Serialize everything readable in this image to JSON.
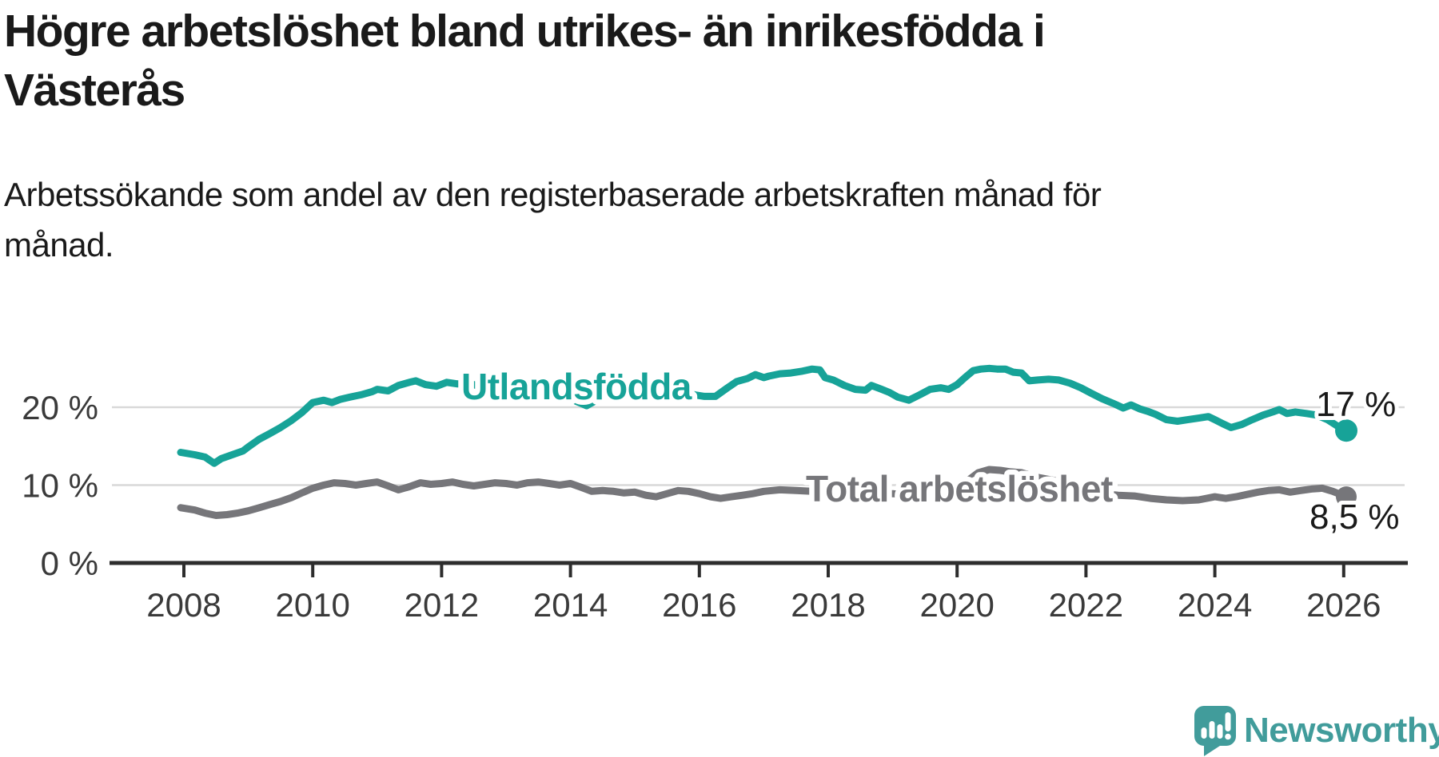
{
  "header": {
    "title_line1": "Högre arbetslöshet bland utrikes- än inrikesfödda i",
    "title_line2": "Västerås",
    "subtitle_line1": "Arbetssökande som andel av den registerbaserade arbetskraften månad för",
    "subtitle_line2": "månad."
  },
  "footer": {
    "brand": "Newsworthy"
  },
  "colors": {
    "teal_line": "#17a398",
    "gray_line": "#76767a",
    "axis_line": "#2d2d2d",
    "axis_text": "#3a3a3a",
    "gridline": "#d9d9d9",
    "value_text": "#1a1a1a",
    "brand_teal": "#419c9b",
    "background": "#ffffff"
  },
  "chart_data": {
    "type": "line",
    "title": "Högre arbetslöshet bland utrikes- än inrikesfödda i Västerås",
    "subtitle": "Arbetssökande som andel av den registerbaserade arbetskraften månad för månad.",
    "xlabel": "",
    "ylabel": "",
    "x_unit": "decimal_year",
    "x_range": [
      2007.95,
      2026.1
    ],
    "ylim": [
      0,
      26
    ],
    "grid": "horizontal",
    "legend_position": "inline",
    "y_ticks": [
      {
        "value": 0,
        "label": "0 %"
      },
      {
        "value": 10,
        "label": "10 %"
      },
      {
        "value": 20,
        "label": "20 %"
      }
    ],
    "x_ticks": [
      {
        "value": 2008,
        "label": "2008"
      },
      {
        "value": 2010,
        "label": "2010"
      },
      {
        "value": 2012,
        "label": "2012"
      },
      {
        "value": 2014,
        "label": "2014"
      },
      {
        "value": 2016,
        "label": "2016"
      },
      {
        "value": 2018,
        "label": "2018"
      },
      {
        "value": 2020,
        "label": "2020"
      },
      {
        "value": 2022,
        "label": "2022"
      },
      {
        "value": 2024,
        "label": "2024"
      },
      {
        "value": 2026,
        "label": "2026"
      }
    ],
    "series": [
      {
        "name": "Utlandsfödda",
        "color": "#17a398",
        "end_label": "17 %",
        "end_value": 17,
        "points": [
          [
            2007.95,
            14.2
          ],
          [
            2008.17,
            13.9
          ],
          [
            2008.33,
            13.6
          ],
          [
            2008.47,
            12.8
          ],
          [
            2008.58,
            13.4
          ],
          [
            2008.75,
            13.9
          ],
          [
            2008.92,
            14.4
          ],
          [
            2009.0,
            14.9
          ],
          [
            2009.17,
            15.9
          ],
          [
            2009.33,
            16.6
          ],
          [
            2009.5,
            17.4
          ],
          [
            2009.67,
            18.3
          ],
          [
            2009.83,
            19.3
          ],
          [
            2010.0,
            20.6
          ],
          [
            2010.17,
            20.9
          ],
          [
            2010.3,
            20.6
          ],
          [
            2010.42,
            21.0
          ],
          [
            2010.58,
            21.3
          ],
          [
            2010.75,
            21.6
          ],
          [
            2010.92,
            22.0
          ],
          [
            2011.0,
            22.3
          ],
          [
            2011.17,
            22.1
          ],
          [
            2011.33,
            22.8
          ],
          [
            2011.5,
            23.2
          ],
          [
            2011.6,
            23.4
          ],
          [
            2011.75,
            22.9
          ],
          [
            2011.92,
            22.7
          ],
          [
            2012.08,
            23.2
          ],
          [
            2012.25,
            23.0
          ],
          [
            2012.42,
            23.1
          ],
          [
            2012.58,
            22.7
          ],
          [
            2012.75,
            22.6
          ],
          [
            2012.92,
            22.8
          ],
          [
            2013.08,
            22.6
          ],
          [
            2013.25,
            22.4
          ],
          [
            2013.42,
            22.7
          ],
          [
            2013.58,
            22.5
          ],
          [
            2013.75,
            22.2
          ],
          [
            2013.92,
            21.6
          ],
          [
            2014.08,
            20.8
          ],
          [
            2014.25,
            20.2
          ],
          [
            2014.42,
            21.0
          ],
          [
            2014.58,
            21.4
          ],
          [
            2014.75,
            21.7
          ],
          [
            2014.92,
            21.9
          ],
          [
            2015.08,
            22.0
          ],
          [
            2015.25,
            22.3
          ],
          [
            2015.42,
            22.4
          ],
          [
            2015.58,
            22.4
          ],
          [
            2015.75,
            22.3
          ],
          [
            2015.92,
            21.6
          ],
          [
            2016.08,
            21.4
          ],
          [
            2016.25,
            21.4
          ],
          [
            2016.42,
            22.4
          ],
          [
            2016.58,
            23.3
          ],
          [
            2016.75,
            23.7
          ],
          [
            2016.87,
            24.2
          ],
          [
            2017.0,
            23.8
          ],
          [
            2017.08,
            24.0
          ],
          [
            2017.25,
            24.3
          ],
          [
            2017.42,
            24.4
          ],
          [
            2017.58,
            24.6
          ],
          [
            2017.75,
            24.9
          ],
          [
            2017.87,
            24.8
          ],
          [
            2017.95,
            23.8
          ],
          [
            2018.08,
            23.5
          ],
          [
            2018.25,
            22.8
          ],
          [
            2018.42,
            22.3
          ],
          [
            2018.58,
            22.2
          ],
          [
            2018.67,
            22.8
          ],
          [
            2018.83,
            22.3
          ],
          [
            2018.95,
            21.9
          ],
          [
            2019.08,
            21.3
          ],
          [
            2019.25,
            20.9
          ],
          [
            2019.42,
            21.6
          ],
          [
            2019.58,
            22.3
          ],
          [
            2019.75,
            22.5
          ],
          [
            2019.87,
            22.3
          ],
          [
            2020.0,
            22.9
          ],
          [
            2020.12,
            23.8
          ],
          [
            2020.25,
            24.7
          ],
          [
            2020.37,
            24.9
          ],
          [
            2020.5,
            25.0
          ],
          [
            2020.62,
            24.9
          ],
          [
            2020.75,
            24.9
          ],
          [
            2020.87,
            24.5
          ],
          [
            2021.0,
            24.4
          ],
          [
            2021.12,
            23.4
          ],
          [
            2021.25,
            23.5
          ],
          [
            2021.42,
            23.6
          ],
          [
            2021.58,
            23.5
          ],
          [
            2021.75,
            23.1
          ],
          [
            2021.92,
            22.5
          ],
          [
            2022.08,
            21.8
          ],
          [
            2022.25,
            21.1
          ],
          [
            2022.42,
            20.5
          ],
          [
            2022.58,
            19.9
          ],
          [
            2022.7,
            20.3
          ],
          [
            2022.83,
            19.8
          ],
          [
            2022.95,
            19.5
          ],
          [
            2023.08,
            19.1
          ],
          [
            2023.25,
            18.4
          ],
          [
            2023.42,
            18.2
          ],
          [
            2023.58,
            18.4
          ],
          [
            2023.75,
            18.6
          ],
          [
            2023.9,
            18.8
          ],
          [
            2024.0,
            18.4
          ],
          [
            2024.12,
            17.9
          ],
          [
            2024.25,
            17.4
          ],
          [
            2024.42,
            17.8
          ],
          [
            2024.58,
            18.4
          ],
          [
            2024.75,
            19.0
          ],
          [
            2024.9,
            19.4
          ],
          [
            2025.0,
            19.7
          ],
          [
            2025.12,
            19.2
          ],
          [
            2025.25,
            19.4
          ],
          [
            2025.42,
            19.2
          ],
          [
            2025.58,
            19.0
          ],
          [
            2025.75,
            18.4
          ],
          [
            2025.9,
            17.6
          ],
          [
            2026.04,
            17.0
          ]
        ]
      },
      {
        "name": "Total arbetslöshet",
        "color": "#76767a",
        "end_label": "8,5 %",
        "end_value": 8.5,
        "points": [
          [
            2007.95,
            7.1
          ],
          [
            2008.17,
            6.8
          ],
          [
            2008.33,
            6.4
          ],
          [
            2008.5,
            6.1
          ],
          [
            2008.67,
            6.2
          ],
          [
            2008.83,
            6.4
          ],
          [
            2009.0,
            6.7
          ],
          [
            2009.17,
            7.1
          ],
          [
            2009.33,
            7.5
          ],
          [
            2009.5,
            7.9
          ],
          [
            2009.67,
            8.4
          ],
          [
            2009.83,
            9.0
          ],
          [
            2010.0,
            9.6
          ],
          [
            2010.17,
            10.0
          ],
          [
            2010.33,
            10.3
          ],
          [
            2010.5,
            10.2
          ],
          [
            2010.67,
            10.0
          ],
          [
            2010.83,
            10.2
          ],
          [
            2011.0,
            10.4
          ],
          [
            2011.17,
            9.9
          ],
          [
            2011.33,
            9.4
          ],
          [
            2011.5,
            9.8
          ],
          [
            2011.67,
            10.3
          ],
          [
            2011.83,
            10.1
          ],
          [
            2012.0,
            10.2
          ],
          [
            2012.17,
            10.4
          ],
          [
            2012.33,
            10.1
          ],
          [
            2012.5,
            9.9
          ],
          [
            2012.67,
            10.1
          ],
          [
            2012.83,
            10.3
          ],
          [
            2013.0,
            10.2
          ],
          [
            2013.17,
            10.0
          ],
          [
            2013.33,
            10.3
          ],
          [
            2013.5,
            10.4
          ],
          [
            2013.67,
            10.2
          ],
          [
            2013.83,
            10.0
          ],
          [
            2014.0,
            10.2
          ],
          [
            2014.17,
            9.7
          ],
          [
            2014.33,
            9.2
          ],
          [
            2014.5,
            9.3
          ],
          [
            2014.67,
            9.2
          ],
          [
            2014.83,
            9.0
          ],
          [
            2015.0,
            9.1
          ],
          [
            2015.17,
            8.7
          ],
          [
            2015.33,
            8.5
          ],
          [
            2015.5,
            8.9
          ],
          [
            2015.67,
            9.3
          ],
          [
            2015.83,
            9.2
          ],
          [
            2016.0,
            8.9
          ],
          [
            2016.17,
            8.5
          ],
          [
            2016.33,
            8.3
          ],
          [
            2016.5,
            8.5
          ],
          [
            2016.67,
            8.7
          ],
          [
            2016.83,
            8.9
          ],
          [
            2017.0,
            9.2
          ],
          [
            2017.25,
            9.4
          ],
          [
            2017.5,
            9.3
          ],
          [
            2017.75,
            9.2
          ],
          [
            2018.0,
            9.3
          ],
          [
            2018.25,
            9.0
          ],
          [
            2018.5,
            8.9
          ],
          [
            2018.75,
            8.8
          ],
          [
            2019.0,
            8.9
          ],
          [
            2019.25,
            8.7
          ],
          [
            2019.5,
            9.0
          ],
          [
            2019.75,
            9.2
          ],
          [
            2020.0,
            9.6
          ],
          [
            2020.17,
            10.6
          ],
          [
            2020.33,
            11.6
          ],
          [
            2020.5,
            12.0
          ],
          [
            2020.67,
            11.9
          ],
          [
            2020.83,
            11.7
          ],
          [
            2021.0,
            11.6
          ],
          [
            2021.25,
            11.0
          ],
          [
            2021.5,
            10.6
          ],
          [
            2021.75,
            10.0
          ],
          [
            2022.0,
            9.4
          ],
          [
            2022.25,
            8.9
          ],
          [
            2022.5,
            8.7
          ],
          [
            2022.75,
            8.6
          ],
          [
            2023.0,
            8.3
          ],
          [
            2023.25,
            8.1
          ],
          [
            2023.5,
            8.0
          ],
          [
            2023.75,
            8.1
          ],
          [
            2024.0,
            8.5
          ],
          [
            2024.17,
            8.3
          ],
          [
            2024.33,
            8.5
          ],
          [
            2024.5,
            8.8
          ],
          [
            2024.67,
            9.1
          ],
          [
            2024.83,
            9.3
          ],
          [
            2025.0,
            9.4
          ],
          [
            2025.17,
            9.1
          ],
          [
            2025.33,
            9.3
          ],
          [
            2025.5,
            9.5
          ],
          [
            2025.67,
            9.6
          ],
          [
            2025.83,
            9.2
          ],
          [
            2026.04,
            8.5
          ]
        ]
      }
    ]
  }
}
